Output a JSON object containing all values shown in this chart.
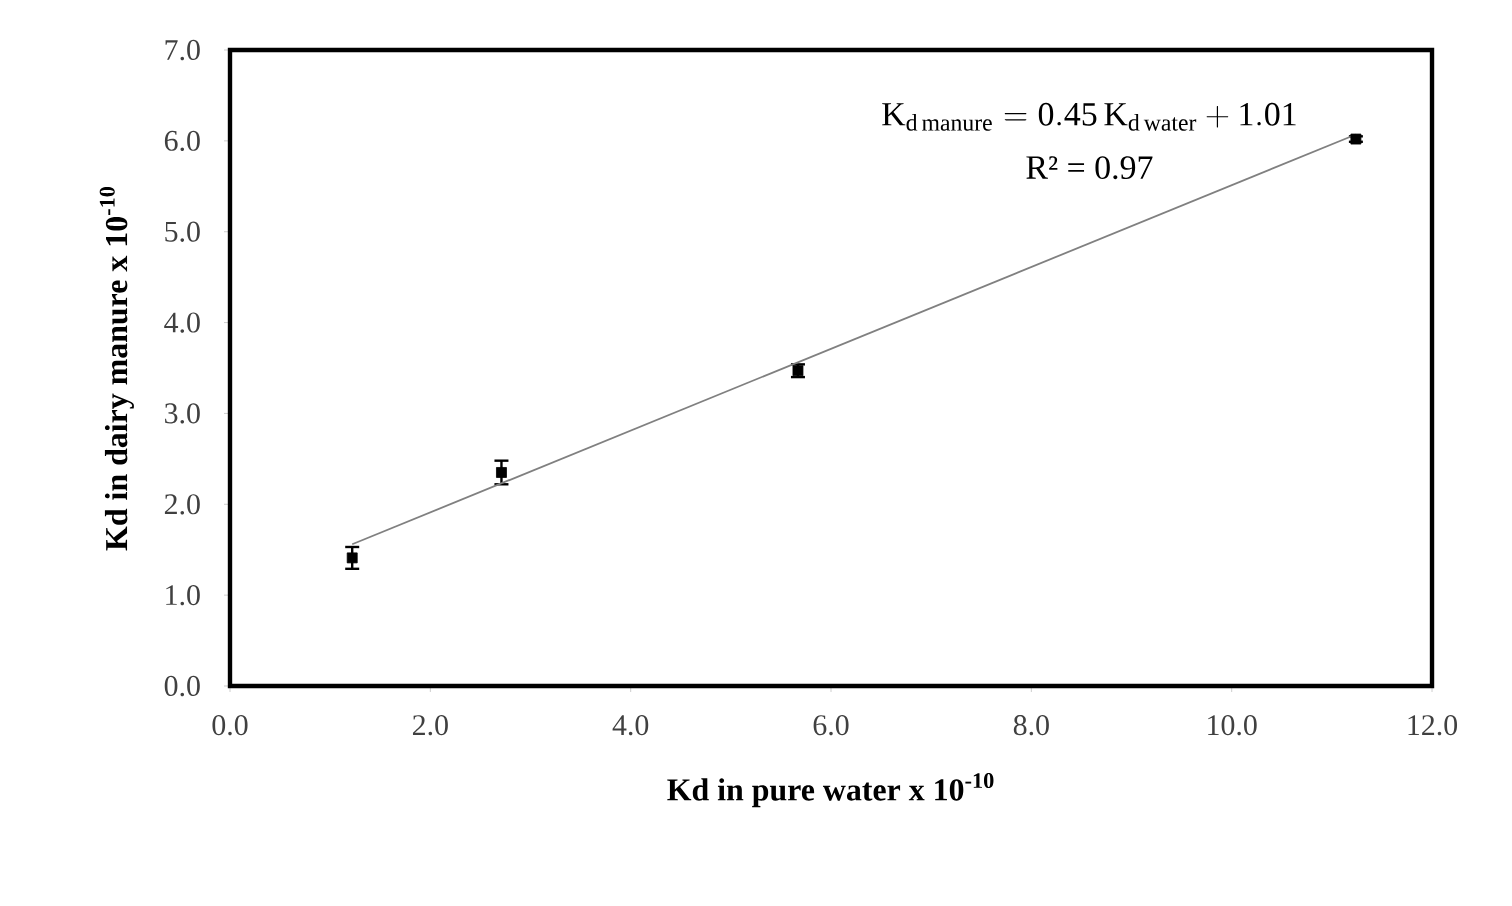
{
  "chart_data": {
    "type": "scatter",
    "xlabel": "Kd in pure water x 10$^{-10}$",
    "ylabel": "Kd in dairy manure x 10$^{-10}$",
    "annotations": [
      "\\mathrm{K_{d\\,manure} = 0.45\\,K_{d\\,water} + 1.01}",
      "R² = 0.97"
    ],
    "series": [
      {
        "color": "#000000",
        "x": [
          1.22,
          2.71,
          5.67,
          11.24
        ],
        "values": [
          1.41,
          2.35,
          3.47,
          6.02
        ],
        "errors": [
          0.12,
          0.13,
          0.07,
          0.03
        ]
      },
      {
        "type": "line",
        "marker": "none",
        "color": "#808080",
        "x": [
          1.22,
          11.24
        ],
        "values": [
          1.56,
          6.07
        ]
      }
    ],
    "marker": "square",
    "grid": false,
    "xlim": [
      0,
      12
    ],
    "ylim": [
      0,
      7
    ],
    "xticks": [
      {
        "value": 0,
        "label": "0.0"
      },
      {
        "value": 2,
        "label": "2.0"
      },
      {
        "value": 4,
        "label": "4.0"
      },
      {
        "value": 6,
        "label": "6.0"
      },
      {
        "value": 8,
        "label": "8.0"
      },
      {
        "value": 10,
        "label": "10.0"
      },
      {
        "value": 12,
        "label": "12.0"
      }
    ],
    "yticks": [
      {
        "value": 0,
        "label": "0.0"
      },
      {
        "value": 1,
        "label": "1.0"
      },
      {
        "value": 2,
        "label": "2.0"
      },
      {
        "value": 3,
        "label": "3.0"
      },
      {
        "value": 4,
        "label": "4.0"
      },
      {
        "value": 5,
        "label": "5.0"
      },
      {
        "value": 6,
        "label": "6.0"
      },
      {
        "value": 7,
        "label": "7.0"
      }
    ]
  }
}
